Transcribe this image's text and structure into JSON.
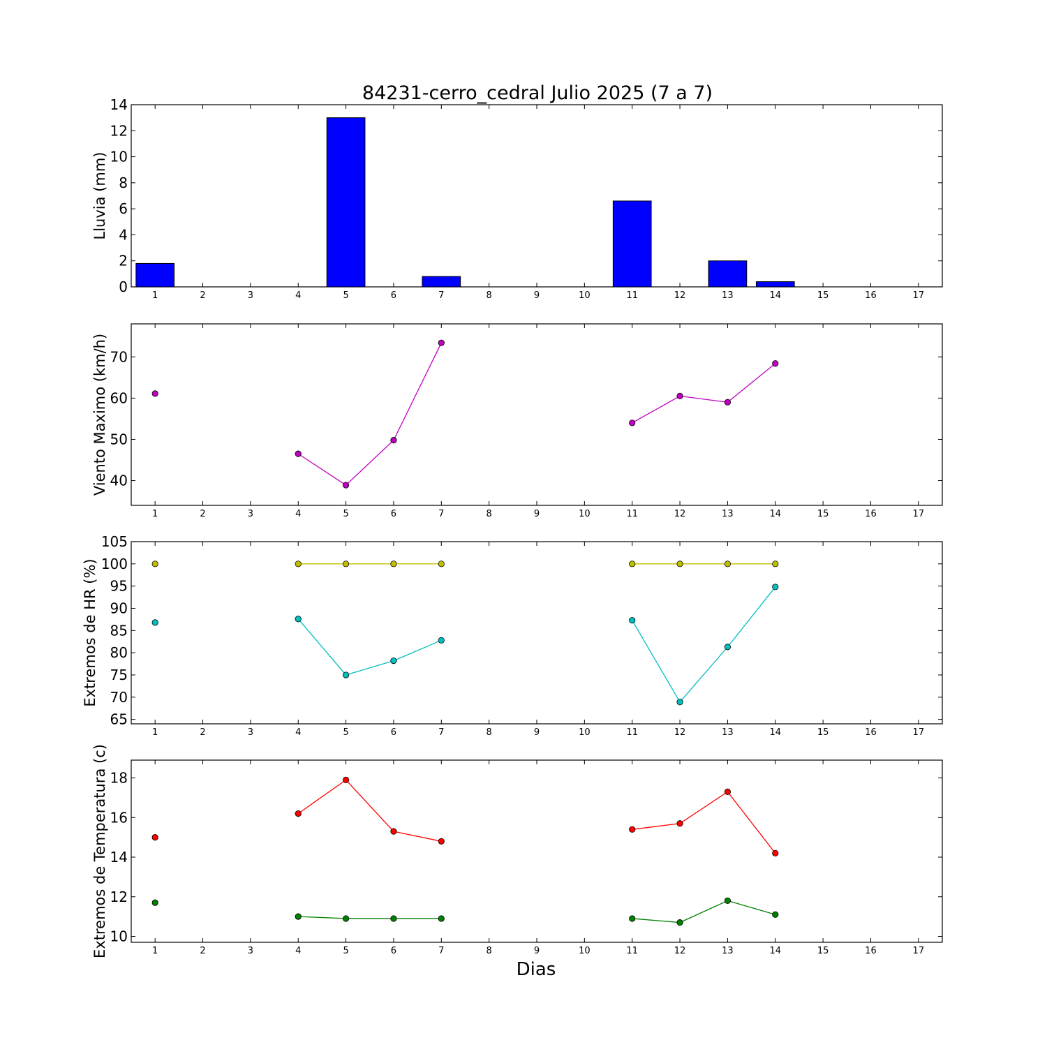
{
  "title": "84231-cerro_cedral Julio 2025  (7 a 7)",
  "xlabel": "Dias",
  "colors": {
    "rain": "#0000ff",
    "wind": "#bf00bf",
    "hr_max": "#bfbf00",
    "hr_min": "#00bfbf",
    "temp_max": "#ff0000",
    "temp_min": "#008000"
  },
  "chart_data": [
    {
      "type": "bar",
      "ylabel": "Lluvia (mm)",
      "x": [
        1,
        2,
        3,
        4,
        5,
        6,
        7,
        8,
        9,
        10,
        11,
        12,
        13,
        14,
        15,
        16,
        17
      ],
      "xlim": [
        0.5,
        17.5
      ],
      "ylim": [
        0,
        14
      ],
      "yticks": [
        0,
        2,
        4,
        6,
        8,
        10,
        12,
        14
      ],
      "series": [
        {
          "values": [
            1.8,
            null,
            null,
            0,
            13.0,
            0,
            0.8,
            null,
            null,
            null,
            6.6,
            0,
            2.0,
            0.4,
            null,
            null,
            null
          ]
        }
      ]
    },
    {
      "type": "line",
      "ylabel": "Viento Maximo (km/h)",
      "x": [
        1,
        2,
        3,
        4,
        5,
        6,
        7,
        8,
        9,
        10,
        11,
        12,
        13,
        14,
        15,
        16,
        17
      ],
      "xlim": [
        0.5,
        17.5
      ],
      "ylim": [
        34,
        78
      ],
      "yticks": [
        40,
        50,
        60,
        70
      ],
      "series": [
        {
          "values": [
            61.1,
            null,
            null,
            46.5,
            38.9,
            49.8,
            73.4,
            null,
            null,
            null,
            54.0,
            60.5,
            59.0,
            68.4,
            null,
            null,
            null
          ]
        }
      ]
    },
    {
      "type": "line",
      "ylabel": "Extremos de HR (%)",
      "x": [
        1,
        2,
        3,
        4,
        5,
        6,
        7,
        8,
        9,
        10,
        11,
        12,
        13,
        14,
        15,
        16,
        17
      ],
      "xlim": [
        0.5,
        17.5
      ],
      "ylim": [
        64,
        105
      ],
      "yticks": [
        65,
        70,
        75,
        80,
        85,
        90,
        95,
        100,
        105
      ],
      "series": [
        {
          "values": [
            100,
            null,
            null,
            100,
            100,
            100,
            100,
            null,
            null,
            null,
            100,
            100,
            100,
            100,
            null,
            null,
            null
          ]
        },
        {
          "values": [
            86.8,
            null,
            null,
            87.6,
            75.0,
            78.2,
            82.8,
            null,
            null,
            null,
            87.3,
            68.9,
            81.3,
            94.8,
            null,
            null,
            null
          ]
        }
      ]
    },
    {
      "type": "line",
      "ylabel": "Extremos de Temperatura (c)",
      "x": [
        1,
        2,
        3,
        4,
        5,
        6,
        7,
        8,
        9,
        10,
        11,
        12,
        13,
        14,
        15,
        16,
        17
      ],
      "xlim": [
        0.5,
        17.5
      ],
      "ylim": [
        9.7,
        18.9
      ],
      "yticks": [
        10,
        12,
        14,
        16,
        18
      ],
      "series": [
        {
          "values": [
            15.0,
            null,
            null,
            16.2,
            17.9,
            15.3,
            14.8,
            null,
            null,
            null,
            15.4,
            15.7,
            17.3,
            14.2,
            null,
            null,
            null
          ]
        },
        {
          "values": [
            11.7,
            null,
            null,
            11.0,
            10.9,
            10.9,
            10.9,
            null,
            null,
            null,
            10.9,
            10.7,
            11.8,
            11.1,
            null,
            null,
            null
          ]
        }
      ]
    }
  ]
}
